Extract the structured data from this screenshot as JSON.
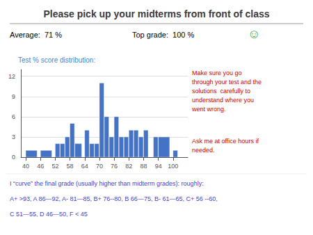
{
  "chart_data": {
    "type": "histogram",
    "title": "Please pick up your midterms from front of class",
    "x": [
      40,
      46,
      52,
      54,
      56,
      58,
      60,
      64,
      66,
      68,
      70,
      72,
      74,
      76,
      78,
      80,
      82,
      84,
      86,
      88,
      90,
      92,
      94,
      100
    ],
    "widths": [
      5,
      5,
      2,
      2,
      2,
      2,
      3,
      2,
      2,
      2,
      2,
      2,
      2,
      2,
      2,
      2,
      2,
      2,
      2,
      2,
      2,
      2,
      5,
      2
    ],
    "values": [
      1,
      1,
      2,
      2,
      3,
      5,
      2,
      4,
      2,
      2,
      11,
      6,
      3,
      6,
      3,
      3,
      4,
      4,
      3,
      4,
      0,
      3,
      3,
      1
    ],
    "color": "#4472c4",
    "xlim": [
      38,
      106
    ],
    "xticks": [
      40,
      46,
      52,
      58,
      64,
      70,
      76,
      82,
      88,
      94,
      100
    ],
    "ylim": [
      0,
      13
    ],
    "yticks": [
      0,
      3,
      6,
      9,
      12
    ],
    "grid": true,
    "annotations": [
      {
        "text": "Average:  71 %",
        "color": "#000000"
      },
      {
        "text": "Top grade:  100 %",
        "color": "#000000"
      },
      {
        "text": "☺",
        "color": "#44aa44"
      },
      {
        "text": "Test % score distribution:",
        "color": "#4488cc"
      },
      {
        "text": "Make sure you go\nthrough your test and the\nsolutions  carefully to\nunderstand where you\nwent wrong.",
        "color": "#cc0000"
      },
      {
        "text": "Ask me at office hours if\nneeded.",
        "color": "#cc0000"
      },
      {
        "text": "I “curve” the final grade (usually higher than midterm grades): roughly:",
        "color": "#4444cc"
      },
      {
        "text": "A+ >93, A 86—92, A- 81—85, B+ 76--80, B 66—75, B- 61—65, C+ 56 --60,",
        "color": "#4444cc"
      },
      {
        "text": "C 51—55, D 46—50, F < 45",
        "color": "#4444cc"
      }
    ]
  }
}
